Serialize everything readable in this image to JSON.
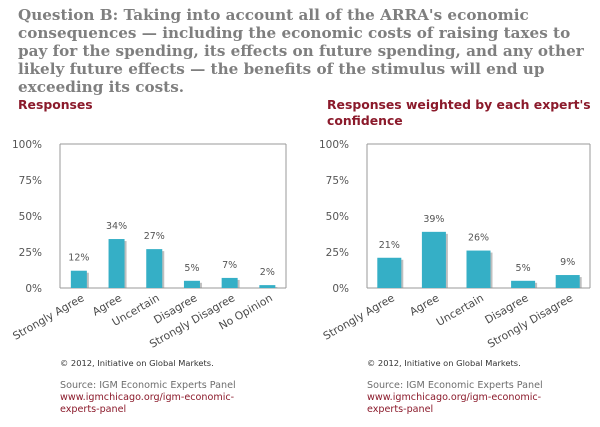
{
  "question": "Question B: Taking into account all of the ARRA's economic consequences — including the economic costs of raising taxes to pay for the spending, its effects on future spending, and any other likely future effects — the benefits of the stimulus will end up exceeding its costs.",
  "colors": {
    "bar": "#35afc6",
    "bar_shadow": "#8a8a8a",
    "title": "#8b1a2b",
    "question": "#7f7f7f"
  },
  "panels": [
    {
      "title": "Responses",
      "copyright": "© 2012, Initiative on Global Markets.",
      "source": "Source: IGM Economic Experts Panel",
      "link": "www.igmchicago.org/igm-economic-experts-panel"
    },
    {
      "title": "Responses weighted by each expert's confidence",
      "copyright": "© 2012, Initiative on Global Markets.",
      "source": "Source: IGM Economic Experts Panel",
      "link": "www.igmchicago.org/igm-economic-experts-panel"
    }
  ],
  "chart_data": [
    {
      "type": "bar",
      "title": "Responses",
      "categories": [
        "Strongly Agree",
        "Agree",
        "Uncertain",
        "Disagree",
        "Strongly Disagree",
        "No Opinion"
      ],
      "values": [
        12,
        34,
        27,
        5,
        7,
        2
      ],
      "value_labels": [
        "12%",
        "34%",
        "27%",
        "5%",
        "7%",
        "2%"
      ],
      "ylim": [
        0,
        100
      ],
      "yticks": [
        "0%",
        "25%",
        "50%",
        "75%",
        "100%"
      ],
      "grid": false
    },
    {
      "type": "bar",
      "title": "Responses weighted by each expert's confidence",
      "categories": [
        "Strongly Agree",
        "Agree",
        "Uncertain",
        "Disagree",
        "Strongly Disagree"
      ],
      "values": [
        21,
        39,
        26,
        5,
        9
      ],
      "value_labels": [
        "21%",
        "39%",
        "26%",
        "5%",
        "9%"
      ],
      "ylim": [
        0,
        100
      ],
      "yticks": [
        "0%",
        "25%",
        "50%",
        "75%",
        "100%"
      ],
      "grid": false
    }
  ]
}
